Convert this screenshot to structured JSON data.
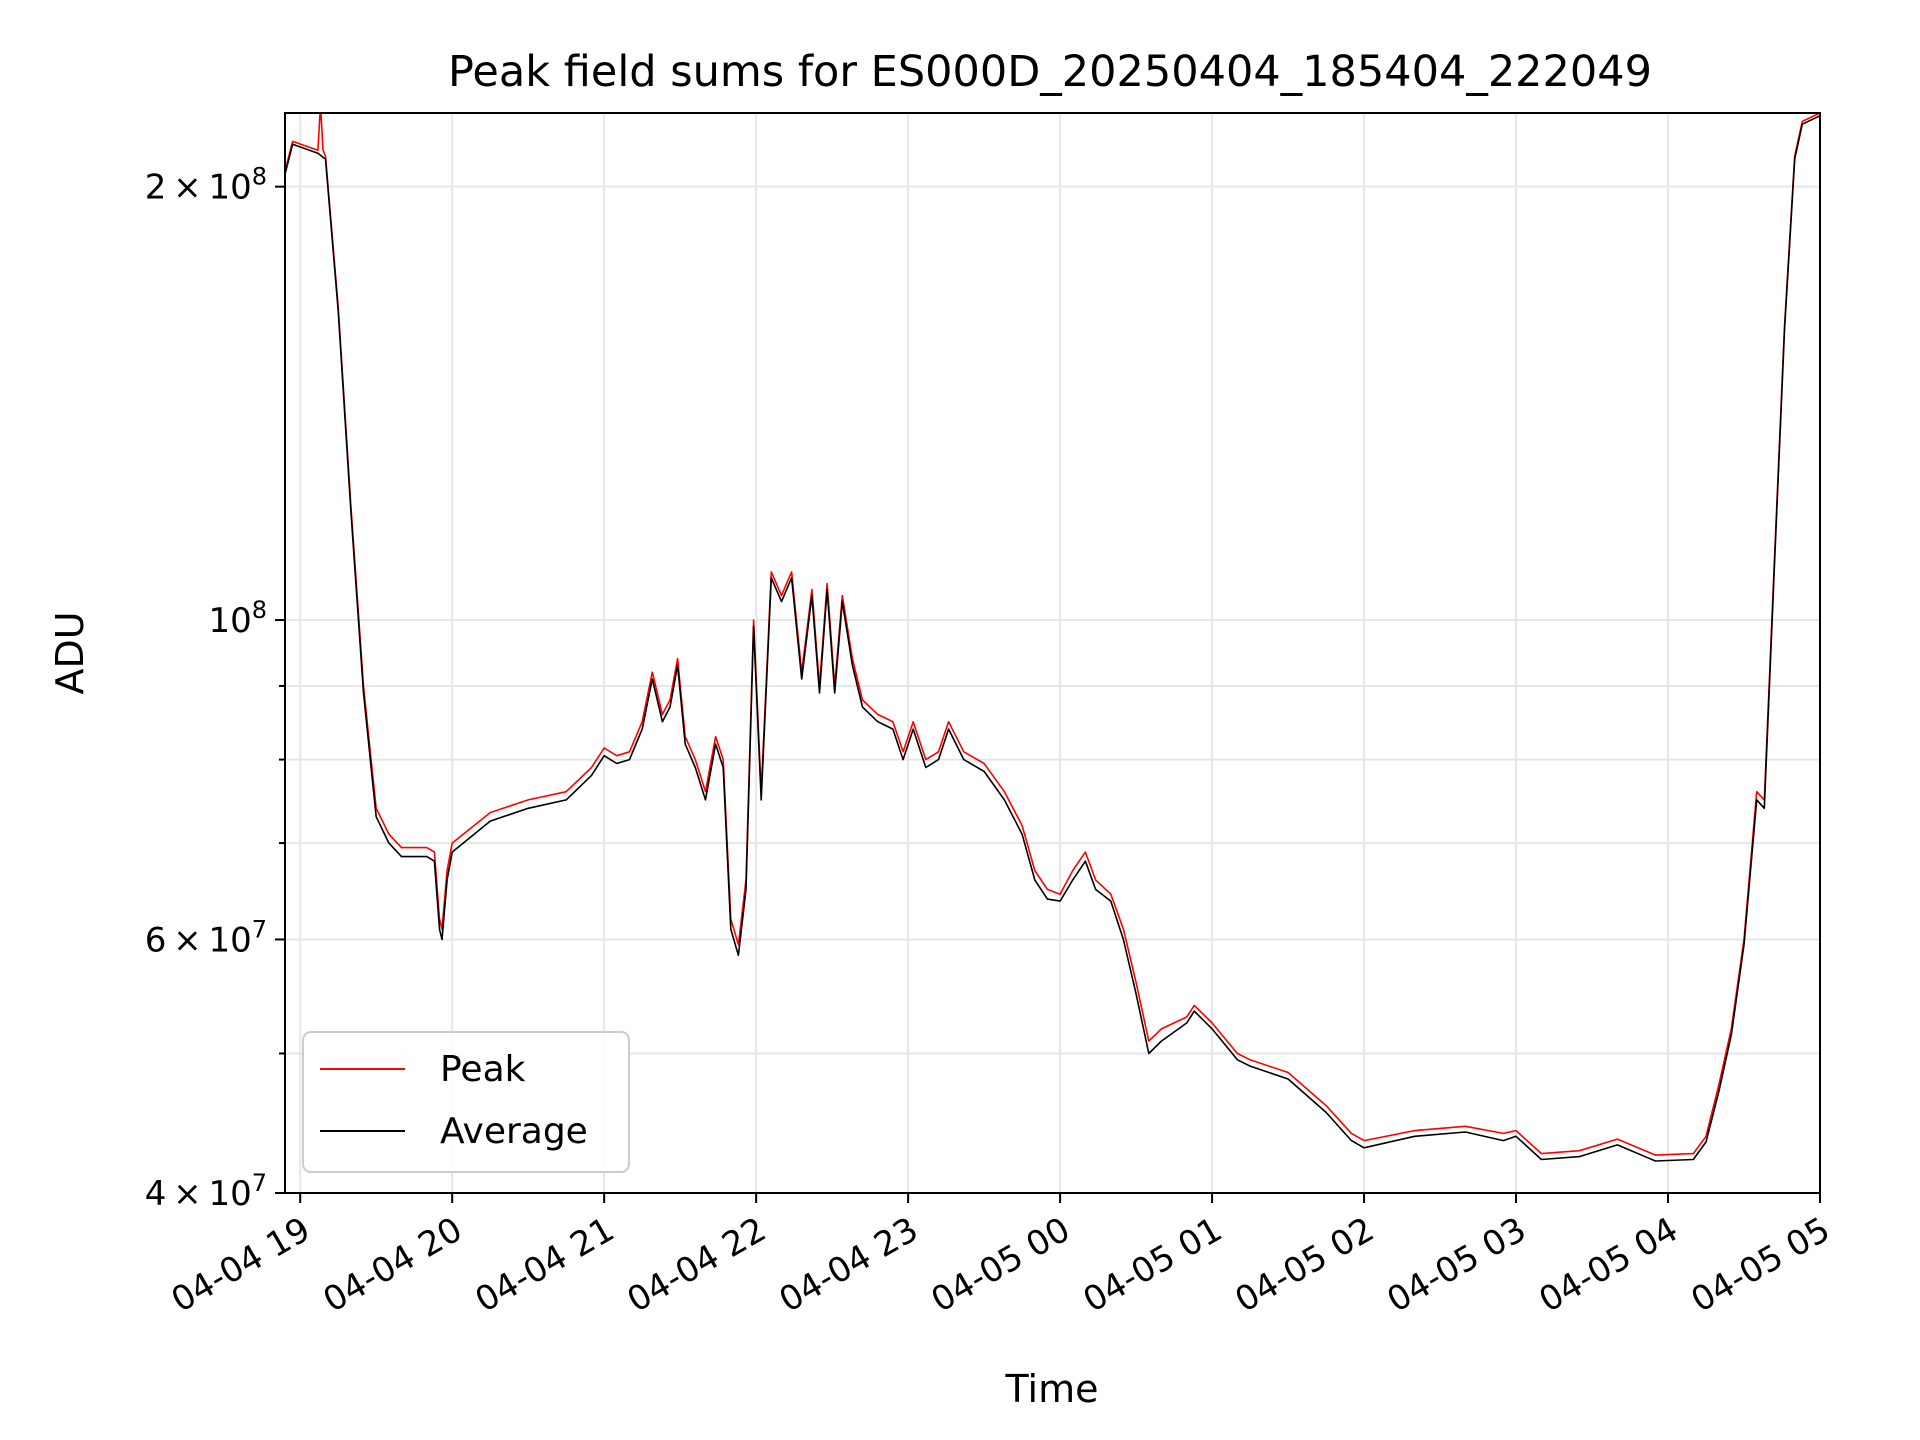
{
  "chart_data": {
    "type": "line",
    "title": "Peak field sums for ES000D_20250404_185404_222049",
    "xlabel": "Time",
    "ylabel": "ADU",
    "y_scale": "log",
    "grid": true,
    "legend_position": "lower-left",
    "xlim": [
      "2025-04-04 18:54",
      "2025-04-05 05:00"
    ],
    "ylim": [
      40000000,
      225000000
    ],
    "x_ticks": [
      {
        "label": "04-04 19",
        "value": "2025-04-04 19:00"
      },
      {
        "label": "04-04 20",
        "value": "2025-04-04 20:00"
      },
      {
        "label": "04-04 21",
        "value": "2025-04-04 21:00"
      },
      {
        "label": "04-04 22",
        "value": "2025-04-04 22:00"
      },
      {
        "label": "04-04 23",
        "value": "2025-04-04 23:00"
      },
      {
        "label": "04-05 00",
        "value": "2025-04-05 00:00"
      },
      {
        "label": "04-05 01",
        "value": "2025-04-05 01:00"
      },
      {
        "label": "04-05 02",
        "value": "2025-04-05 02:00"
      },
      {
        "label": "04-05 03",
        "value": "2025-04-05 03:00"
      },
      {
        "label": "04-05 04",
        "value": "2025-04-05 04:00"
      },
      {
        "label": "04-05 05",
        "value": "2025-04-05 05:00"
      }
    ],
    "y_ticks_major": [
      {
        "value": 40000000,
        "mantissa": "4",
        "exponent": "7"
      },
      {
        "value": 60000000,
        "mantissa": "6",
        "exponent": "7"
      },
      {
        "value": 100000000,
        "mantissa": "",
        "exponent": "8"
      },
      {
        "value": 200000000,
        "mantissa": "2",
        "exponent": "8"
      }
    ],
    "y_ticks_minor": [
      50000000,
      70000000,
      80000000,
      90000000
    ],
    "series": [
      {
        "name": "Peak",
        "color": "#ff0000",
        "points": [
          [
            "2025-04-04 18:54",
            205000000
          ],
          [
            "2025-04-04 18:57",
            215000000
          ],
          [
            "2025-04-04 19:07",
            212000000
          ],
          [
            "2025-04-04 19:08",
            228000000
          ],
          [
            "2025-04-04 19:09",
            212000000
          ],
          [
            "2025-04-04 19:10",
            210000000
          ],
          [
            "2025-04-04 19:15",
            165000000
          ],
          [
            "2025-04-04 19:20",
            120000000
          ],
          [
            "2025-04-04 19:25",
            90000000
          ],
          [
            "2025-04-04 19:28",
            80000000
          ],
          [
            "2025-04-04 19:30",
            74000000
          ],
          [
            "2025-04-04 19:35",
            71000000
          ],
          [
            "2025-04-04 19:40",
            69500000
          ],
          [
            "2025-04-04 19:50",
            69500000
          ],
          [
            "2025-04-04 19:53",
            69000000
          ],
          [
            "2025-04-04 19:55",
            62000000
          ],
          [
            "2025-04-04 19:56",
            61000000
          ],
          [
            "2025-04-04 19:58",
            67000000
          ],
          [
            "2025-04-04 20:00",
            70000000
          ],
          [
            "2025-04-04 20:15",
            73500000
          ],
          [
            "2025-04-04 20:30",
            75000000
          ],
          [
            "2025-04-04 20:45",
            76000000
          ],
          [
            "2025-04-04 20:55",
            79000000
          ],
          [
            "2025-04-04 21:00",
            81500000
          ],
          [
            "2025-04-04 21:05",
            80500000
          ],
          [
            "2025-04-04 21:10",
            81000000
          ],
          [
            "2025-04-04 21:15",
            85000000
          ],
          [
            "2025-04-04 21:19",
            92000000
          ],
          [
            "2025-04-04 21:23",
            86000000
          ],
          [
            "2025-04-04 21:26",
            88000000
          ],
          [
            "2025-04-04 21:29",
            94000000
          ],
          [
            "2025-04-04 21:32",
            83000000
          ],
          [
            "2025-04-04 21:36",
            80000000
          ],
          [
            "2025-04-04 21:40",
            76000000
          ],
          [
            "2025-04-04 21:44",
            83000000
          ],
          [
            "2025-04-04 21:47",
            80000000
          ],
          [
            "2025-04-04 21:50",
            62000000
          ],
          [
            "2025-04-04 21:53",
            59500000
          ],
          [
            "2025-04-04 21:56",
            66000000
          ],
          [
            "2025-04-04 21:59",
            100000000
          ],
          [
            "2025-04-04 22:02",
            76000000
          ],
          [
            "2025-04-04 22:06",
            108000000
          ],
          [
            "2025-04-04 22:10",
            104000000
          ],
          [
            "2025-04-04 22:14",
            108000000
          ],
          [
            "2025-04-04 22:18",
            92000000
          ],
          [
            "2025-04-04 22:22",
            105000000
          ],
          [
            "2025-04-04 22:25",
            90000000
          ],
          [
            "2025-04-04 22:28",
            106000000
          ],
          [
            "2025-04-04 22:31",
            90000000
          ],
          [
            "2025-04-04 22:34",
            104000000
          ],
          [
            "2025-04-04 22:38",
            94000000
          ],
          [
            "2025-04-04 22:42",
            88000000
          ],
          [
            "2025-04-04 22:48",
            86000000
          ],
          [
            "2025-04-04 22:54",
            85000000
          ],
          [
            "2025-04-04 22:58",
            81000000
          ],
          [
            "2025-04-04 23:02",
            85000000
          ],
          [
            "2025-04-04 23:07",
            80000000
          ],
          [
            "2025-04-04 23:12",
            81000000
          ],
          [
            "2025-04-04 23:16",
            85000000
          ],
          [
            "2025-04-04 23:22",
            81000000
          ],
          [
            "2025-04-04 23:30",
            79500000
          ],
          [
            "2025-04-04 23:38",
            76000000
          ],
          [
            "2025-04-04 23:45",
            72000000
          ],
          [
            "2025-04-04 23:50",
            67000000
          ],
          [
            "2025-04-04 23:55",
            65000000
          ],
          [
            "2025-04-05 00:00",
            64500000
          ],
          [
            "2025-04-05 00:05",
            67000000
          ],
          [
            "2025-04-05 00:10",
            69000000
          ],
          [
            "2025-04-05 00:14",
            66000000
          ],
          [
            "2025-04-05 00:20",
            64500000
          ],
          [
            "2025-04-05 00:25",
            61000000
          ],
          [
            "2025-04-05 00:30",
            56000000
          ],
          [
            "2025-04-05 00:35",
            51000000
          ],
          [
            "2025-04-05 00:40",
            52000000
          ],
          [
            "2025-04-05 00:50",
            53000000
          ],
          [
            "2025-04-05 00:53",
            54000000
          ],
          [
            "2025-04-05 01:00",
            52500000
          ],
          [
            "2025-04-05 01:10",
            50000000
          ],
          [
            "2025-04-05 01:15",
            49500000
          ],
          [
            "2025-04-05 01:30",
            48500000
          ],
          [
            "2025-04-05 01:45",
            46000000
          ],
          [
            "2025-04-05 01:55",
            44000000
          ],
          [
            "2025-04-05 02:00",
            43500000
          ],
          [
            "2025-04-05 02:20",
            44200000
          ],
          [
            "2025-04-05 02:40",
            44500000
          ],
          [
            "2025-04-05 02:55",
            44000000
          ],
          [
            "2025-04-05 03:00",
            44200000
          ],
          [
            "2025-04-05 03:10",
            42600000
          ],
          [
            "2025-04-05 03:25",
            42800000
          ],
          [
            "2025-04-05 03:40",
            43600000
          ],
          [
            "2025-04-05 03:55",
            42500000
          ],
          [
            "2025-04-05 04:10",
            42600000
          ],
          [
            "2025-04-05 04:15",
            43800000
          ],
          [
            "2025-04-05 04:20",
            47500000
          ],
          [
            "2025-04-05 04:25",
            52000000
          ],
          [
            "2025-04-05 04:30",
            60000000
          ],
          [
            "2025-04-05 04:35",
            76000000
          ],
          [
            "2025-04-05 04:38",
            75000000
          ],
          [
            "2025-04-05 04:42",
            110000000
          ],
          [
            "2025-04-05 04:46",
            160000000
          ],
          [
            "2025-04-05 04:50",
            210000000
          ],
          [
            "2025-04-05 04:53",
            222000000
          ],
          [
            "2025-04-05 05:00",
            225000000
          ]
        ]
      },
      {
        "name": "Average",
        "color": "#000000",
        "points": [
          [
            "2025-04-04 18:54",
            204000000
          ],
          [
            "2025-04-04 18:57",
            214000000
          ],
          [
            "2025-04-04 19:07",
            211000000
          ],
          [
            "2025-04-04 19:10",
            209000000
          ],
          [
            "2025-04-04 19:15",
            164000000
          ],
          [
            "2025-04-04 19:20",
            119000000
          ],
          [
            "2025-04-04 19:25",
            89000000
          ],
          [
            "2025-04-04 19:28",
            79000000
          ],
          [
            "2025-04-04 19:30",
            73000000
          ],
          [
            "2025-04-04 19:35",
            70000000
          ],
          [
            "2025-04-04 19:40",
            68500000
          ],
          [
            "2025-04-04 19:50",
            68500000
          ],
          [
            "2025-04-04 19:53",
            68000000
          ],
          [
            "2025-04-04 19:55",
            61000000
          ],
          [
            "2025-04-04 19:56",
            60000000
          ],
          [
            "2025-04-04 19:58",
            66000000
          ],
          [
            "2025-04-04 20:00",
            69000000
          ],
          [
            "2025-04-04 20:15",
            72500000
          ],
          [
            "2025-04-04 20:30",
            74000000
          ],
          [
            "2025-04-04 20:45",
            75000000
          ],
          [
            "2025-04-04 20:55",
            78000000
          ],
          [
            "2025-04-04 21:00",
            80500000
          ],
          [
            "2025-04-04 21:05",
            79500000
          ],
          [
            "2025-04-04 21:10",
            80000000
          ],
          [
            "2025-04-04 21:15",
            84000000
          ],
          [
            "2025-04-04 21:19",
            91000000
          ],
          [
            "2025-04-04 21:23",
            85000000
          ],
          [
            "2025-04-04 21:26",
            87000000
          ],
          [
            "2025-04-04 21:29",
            93000000
          ],
          [
            "2025-04-04 21:32",
            82000000
          ],
          [
            "2025-04-04 21:36",
            79000000
          ],
          [
            "2025-04-04 21:40",
            75000000
          ],
          [
            "2025-04-04 21:44",
            82000000
          ],
          [
            "2025-04-04 21:47",
            79000000
          ],
          [
            "2025-04-04 21:50",
            61000000
          ],
          [
            "2025-04-04 21:53",
            58500000
          ],
          [
            "2025-04-04 21:56",
            65000000
          ],
          [
            "2025-04-04 21:59",
            99000000
          ],
          [
            "2025-04-04 22:02",
            75000000
          ],
          [
            "2025-04-04 22:06",
            107000000
          ],
          [
            "2025-04-04 22:10",
            103000000
          ],
          [
            "2025-04-04 22:14",
            107000000
          ],
          [
            "2025-04-04 22:18",
            91000000
          ],
          [
            "2025-04-04 22:22",
            104000000
          ],
          [
            "2025-04-04 22:25",
            89000000
          ],
          [
            "2025-04-04 22:28",
            105000000
          ],
          [
            "2025-04-04 22:31",
            89000000
          ],
          [
            "2025-04-04 22:34",
            103000000
          ],
          [
            "2025-04-04 22:38",
            93000000
          ],
          [
            "2025-04-04 22:42",
            87000000
          ],
          [
            "2025-04-04 22:48",
            85000000
          ],
          [
            "2025-04-04 22:54",
            84000000
          ],
          [
            "2025-04-04 22:58",
            80000000
          ],
          [
            "2025-04-04 23:02",
            84000000
          ],
          [
            "2025-04-04 23:07",
            79000000
          ],
          [
            "2025-04-04 23:12",
            80000000
          ],
          [
            "2025-04-04 23:16",
            84000000
          ],
          [
            "2025-04-04 23:22",
            80000000
          ],
          [
            "2025-04-04 23:30",
            78500000
          ],
          [
            "2025-04-04 23:38",
            75000000
          ],
          [
            "2025-04-04 23:45",
            71000000
          ],
          [
            "2025-04-04 23:50",
            66000000
          ],
          [
            "2025-04-04 23:55",
            64000000
          ],
          [
            "2025-04-05 00:00",
            63800000
          ],
          [
            "2025-04-05 00:05",
            66000000
          ],
          [
            "2025-04-05 00:10",
            68000000
          ],
          [
            "2025-04-05 00:14",
            65000000
          ],
          [
            "2025-04-05 00:20",
            63800000
          ],
          [
            "2025-04-05 00:25",
            60000000
          ],
          [
            "2025-04-05 00:30",
            55000000
          ],
          [
            "2025-04-05 00:35",
            50000000
          ],
          [
            "2025-04-05 00:40",
            51000000
          ],
          [
            "2025-04-05 00:50",
            52500000
          ],
          [
            "2025-04-05 00:53",
            53500000
          ],
          [
            "2025-04-05 01:00",
            52000000
          ],
          [
            "2025-04-05 01:10",
            49500000
          ],
          [
            "2025-04-05 01:15",
            49000000
          ],
          [
            "2025-04-05 01:30",
            48000000
          ],
          [
            "2025-04-05 01:45",
            45500000
          ],
          [
            "2025-04-05 01:55",
            43500000
          ],
          [
            "2025-04-05 02:00",
            43000000
          ],
          [
            "2025-04-05 02:20",
            43800000
          ],
          [
            "2025-04-05 02:40",
            44100000
          ],
          [
            "2025-04-05 02:55",
            43500000
          ],
          [
            "2025-04-05 03:00",
            43800000
          ],
          [
            "2025-04-05 03:10",
            42200000
          ],
          [
            "2025-04-05 03:25",
            42400000
          ],
          [
            "2025-04-05 03:40",
            43200000
          ],
          [
            "2025-04-05 03:55",
            42100000
          ],
          [
            "2025-04-05 04:10",
            42200000
          ],
          [
            "2025-04-05 04:15",
            43400000
          ],
          [
            "2025-04-05 04:20",
            47000000
          ],
          [
            "2025-04-05 04:25",
            51500000
          ],
          [
            "2025-04-05 04:30",
            59500000
          ],
          [
            "2025-04-05 04:35",
            75000000
          ],
          [
            "2025-04-05 04:38",
            74000000
          ],
          [
            "2025-04-05 04:42",
            109000000
          ],
          [
            "2025-04-05 04:46",
            159000000
          ],
          [
            "2025-04-05 04:50",
            209000000
          ],
          [
            "2025-04-05 04:53",
            221000000
          ],
          [
            "2025-04-05 05:00",
            224000000
          ]
        ]
      }
    ]
  },
  "legend": [
    {
      "label": "Peak",
      "color": "#ff0000"
    },
    {
      "label": "Average",
      "color": "#000000"
    }
  ]
}
